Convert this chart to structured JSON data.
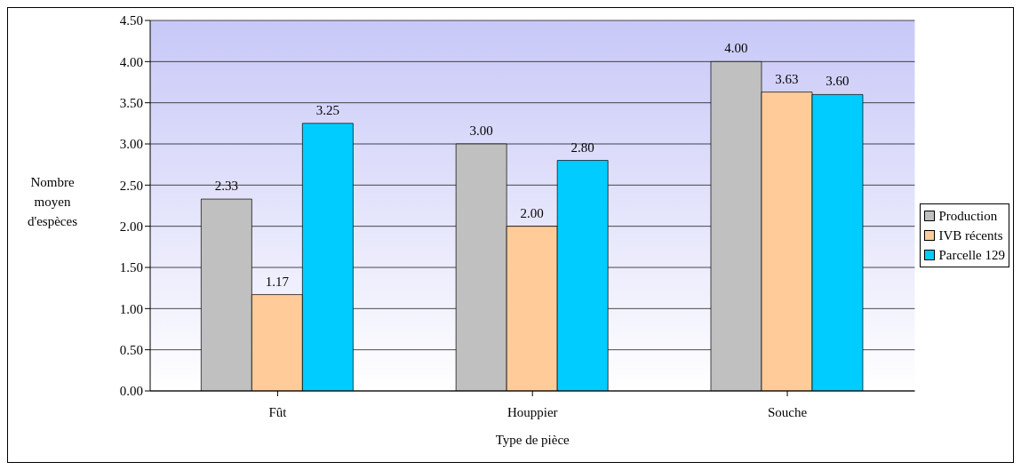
{
  "chart_data": {
    "type": "bar",
    "xlabel": "Type de pièce",
    "ylabel": "Nombre moyen d'espèces",
    "categories": [
      "Fût",
      "Houppier",
      "Souche"
    ],
    "series": [
      {
        "name": "Production",
        "color": "#c0c0c0",
        "values": [
          2.33,
          3.0,
          4.0
        ],
        "value_labels": [
          "2.33",
          "3.00",
          "4.00"
        ]
      },
      {
        "name": "IVB récents",
        "color": "#ffcc99",
        "values": [
          1.17,
          2.0,
          3.63
        ],
        "value_labels": [
          "1.17",
          "2.00",
          "3.63"
        ]
      },
      {
        "name": "Parcelle 129",
        "color": "#00ccff",
        "values": [
          3.25,
          2.8,
          3.6
        ],
        "value_labels": [
          "3.25",
          "2.80",
          "3.60"
        ]
      }
    ],
    "ylim": [
      0,
      4.5
    ],
    "yticks": [
      {
        "value": 0,
        "label": "0.00"
      },
      {
        "value": 0.5,
        "label": "0.50"
      },
      {
        "value": 1,
        "label": "1.00"
      },
      {
        "value": 1.5,
        "label": "1.50"
      },
      {
        "value": 2,
        "label": "2.00"
      },
      {
        "value": 2.5,
        "label": "2.50"
      },
      {
        "value": 3,
        "label": "3.00"
      },
      {
        "value": 3.5,
        "label": "3.50"
      },
      {
        "value": 4,
        "label": "4.00"
      },
      {
        "value": 4.5,
        "label": "4.50"
      }
    ],
    "grid": "y",
    "legend": "right"
  }
}
